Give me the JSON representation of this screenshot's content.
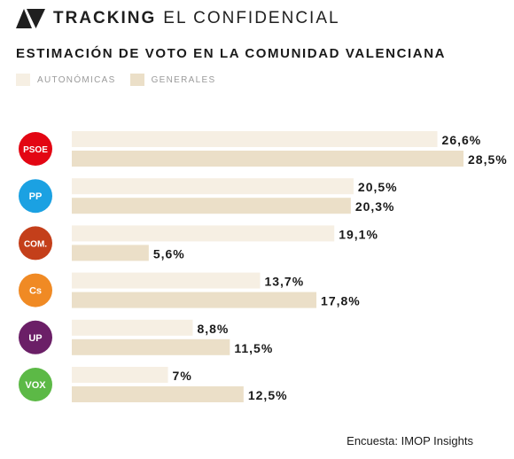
{
  "brand": {
    "name_bold": "TRACKING",
    "name_light": "EL CONFIDENCIAL"
  },
  "chart_data": {
    "type": "bar",
    "orientation": "horizontal",
    "title": "ESTIMACIÓN DE VOTO EN LA COMUNIDAD VALENCIANA",
    "legend_placement": "top-left",
    "categories": [
      "PSOE",
      "PP",
      "COM.",
      "Cs",
      "UP",
      "VOX"
    ],
    "category_colors": [
      "#e30613",
      "#1ba1e2",
      "#c43f1a",
      "#f08a24",
      "#6b1f67",
      "#5cb946"
    ],
    "series": [
      {
        "name": "AUTONÓMICAS",
        "color": "#f6efe3",
        "values": [
          26.6,
          20.5,
          19.1,
          13.7,
          8.8,
          7.0
        ],
        "labels": [
          "26,6%",
          "20,5%",
          "19,1%",
          "13,7%",
          "8,8%",
          "7%"
        ]
      },
      {
        "name": "GENERALES",
        "color": "#ebdfc8",
        "values": [
          28.5,
          20.3,
          5.6,
          17.8,
          11.5,
          12.5
        ],
        "labels": [
          "28,5%",
          "20,3%",
          "5,6%",
          "17,8%",
          "11,5%",
          "12,5%"
        ]
      }
    ],
    "xlim": [
      0,
      28.5
    ],
    "grid": false
  },
  "source": "Encuesta: IMOP Insights"
}
